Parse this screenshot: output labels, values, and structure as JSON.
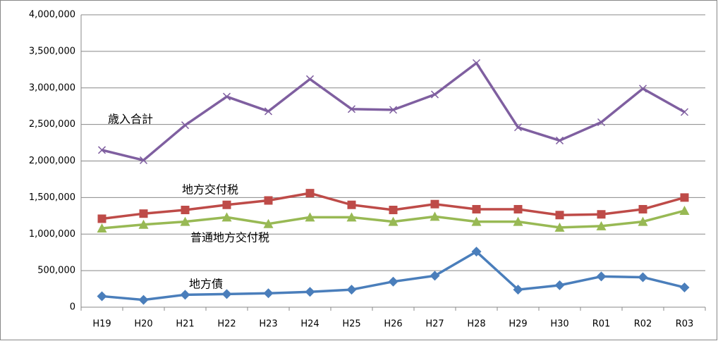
{
  "chart_data": {
    "type": "line",
    "categories": [
      "H19",
      "H20",
      "H21",
      "H22",
      "H23",
      "H24",
      "H25",
      "H26",
      "H27",
      "H28",
      "H29",
      "H30",
      "R01",
      "R02",
      "R03"
    ],
    "series": [
      {
        "name": "歳入合計",
        "color": "#7f5fa0",
        "marker": "x",
        "values": [
          2150000,
          2010000,
          2490000,
          2880000,
          2680000,
          3120000,
          2710000,
          2700000,
          2910000,
          3340000,
          2460000,
          2280000,
          2530000,
          2990000,
          2670000
        ]
      },
      {
        "name": "地方交付税",
        "color": "#be4b48",
        "marker": "square",
        "values": [
          1210000,
          1280000,
          1330000,
          1400000,
          1460000,
          1560000,
          1400000,
          1330000,
          1410000,
          1340000,
          1340000,
          1260000,
          1270000,
          1340000,
          1500000
        ]
      },
      {
        "name": "普通地方交付税",
        "color": "#98b954",
        "marker": "triangle",
        "values": [
          1080000,
          1130000,
          1170000,
          1230000,
          1140000,
          1230000,
          1230000,
          1170000,
          1240000,
          1170000,
          1170000,
          1090000,
          1110000,
          1170000,
          1320000
        ]
      },
      {
        "name": "地方債",
        "color": "#4a7ebb",
        "marker": "diamond",
        "values": [
          150000,
          100000,
          170000,
          180000,
          190000,
          210000,
          240000,
          350000,
          430000,
          760000,
          240000,
          300000,
          420000,
          410000,
          270000
        ]
      }
    ],
    "ylim": [
      0,
      4000000
    ],
    "yticks": [
      0,
      {
        "value": 500000,
        "label": "500,000"
      },
      {
        "value": 1000000,
        "label": "1,000,000"
      },
      {
        "value": 1500000,
        "label": "1,500,000"
      },
      {
        "value": 2000000,
        "label": "2,000,000"
      },
      {
        "value": 2500000,
        "label": "2,500,000"
      },
      {
        "value": 3000000,
        "label": "3,000,000"
      },
      {
        "value": 3500000,
        "label": "3,500,000"
      },
      {
        "value": 4000000,
        "label": "4,000,000"
      }
    ],
    "grid": true
  }
}
